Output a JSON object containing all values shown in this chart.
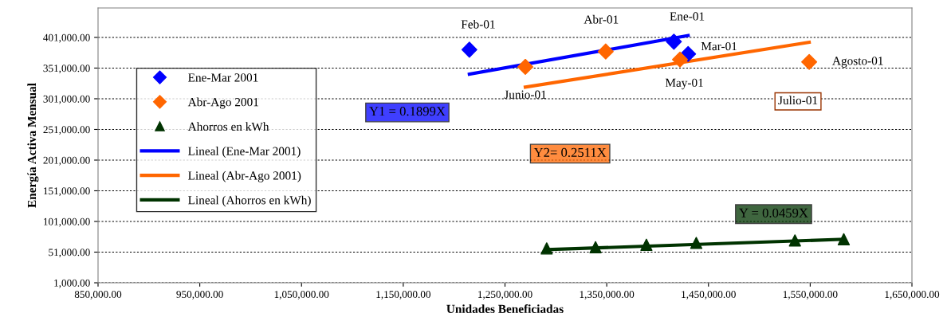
{
  "chart_data": {
    "type": "scatter",
    "xlabel": "Unidades Beneficiadas",
    "ylabel": "Energía Activa Mensual",
    "xlim": [
      850000,
      1650000
    ],
    "ylim": [
      1000,
      449000
    ],
    "xticks": [
      {
        "value": 850000,
        "label": "850,000.00"
      },
      {
        "value": 950000,
        "label": "950,000.00"
      },
      {
        "value": 1050000,
        "label": "1,050,000.00"
      },
      {
        "value": 1150000,
        "label": "1,150,000.00"
      },
      {
        "value": 1250000,
        "label": "1,250,000.00"
      },
      {
        "value": 1350000,
        "label": "1,350,000.00"
      },
      {
        "value": 1450000,
        "label": "1,450,000.00"
      },
      {
        "value": 1550000,
        "label": "1,550,000.00"
      },
      {
        "value": 1650000,
        "label": "1,650,000.00"
      }
    ],
    "yticks": [
      {
        "value": 1000,
        "label": "1,000.00"
      },
      {
        "value": 51000,
        "label": "51,000.00"
      },
      {
        "value": 101000,
        "label": "101,000.00"
      },
      {
        "value": 151000,
        "label": "151,000.00"
      },
      {
        "value": 201000,
        "label": "201,000.00"
      },
      {
        "value": 251000,
        "label": "251,000.00"
      },
      {
        "value": 301000,
        "label": "301,000.00"
      },
      {
        "value": 351000,
        "label": "351,000.00"
      },
      {
        "value": 401000,
        "label": "401,000.00"
      }
    ],
    "grid": "y",
    "legend": "left",
    "series": [
      {
        "name": "Ene-Mar 2001",
        "marker": "diamond",
        "color": "#0000ff",
        "x": [
          1215000,
          1416000,
          1430000
        ],
        "values": [
          381000,
          394000,
          374000
        ]
      },
      {
        "name": "Abr-Ago 2001",
        "marker": "diamond",
        "color": "#ff6600",
        "x": [
          1270000,
          1349000,
          1422000,
          1549000
        ],
        "values": [
          353000,
          378000,
          365000,
          361000
        ]
      },
      {
        "name": "Ahorros en kWh",
        "marker": "triangle",
        "color": "#003300",
        "x": [
          1291000,
          1339000,
          1389000,
          1438000,
          1535000,
          1583000
        ],
        "values": [
          57000,
          59000,
          63000,
          66000,
          70000,
          72000
        ]
      },
      {
        "name": "Lineal (Ene-Mar 2001)",
        "type": "line",
        "color": "#0000ff",
        "x": [
          1215000,
          1430000
        ],
        "values": [
          341000,
          404000
        ]
      },
      {
        "name": "Lineal (Abr-Ago 2001)",
        "type": "line",
        "color": "#ff6600",
        "x": [
          1270000,
          1549000
        ],
        "values": [
          320000,
          393000
        ]
      },
      {
        "name": "Lineal (Ahorros en kWh)",
        "type": "line",
        "color": "#003300",
        "x": [
          1291000,
          1583000
        ],
        "values": [
          55000,
          72000
        ]
      }
    ],
    "annotations": [
      {
        "text": "Feb-01",
        "x": 1215000,
        "y": 381000
      },
      {
        "text": "Ene-01",
        "x": 1416000,
        "y": 394000
      },
      {
        "text": "Mar-01",
        "x": 1430000,
        "y": 374000
      },
      {
        "text": "Abr-01",
        "x": 1349000,
        "y": 378000
      },
      {
        "text": "Junio-01",
        "x": 1270000,
        "y": 353000
      },
      {
        "text": "May-01",
        "x": 1422000,
        "y": 365000
      },
      {
        "text": "Agosto-01",
        "x": 1549000,
        "y": 361000
      },
      "Julio-01",
      "Y1 = 0.1899X",
      "Y2= 0.2511X",
      "Y = 0.0459X"
    ]
  }
}
